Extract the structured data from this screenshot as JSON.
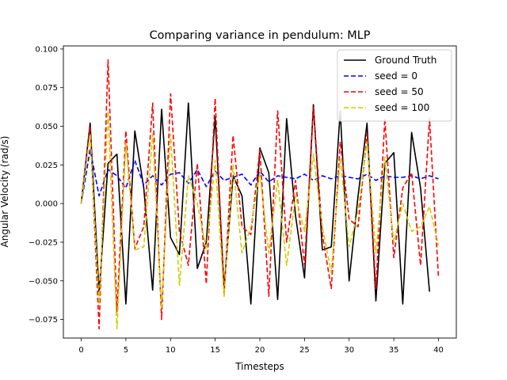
{
  "chart_data": {
    "type": "line",
    "title": "Comparing variance in pendulum: MLP",
    "xlabel": "Timesteps",
    "ylabel": "Angular Velocity (rad/s)",
    "xlim": [
      -2,
      42
    ],
    "ylim": [
      -0.087,
      0.102
    ],
    "xticks": [
      0,
      5,
      10,
      15,
      20,
      25,
      30,
      35,
      40
    ],
    "yticks": [
      -0.075,
      -0.05,
      -0.025,
      0.0,
      0.025,
      0.05,
      0.075,
      0.1
    ],
    "ytick_labels": [
      "−0.075",
      "−0.050",
      "−0.025",
      "0.000",
      "0.025",
      "0.050",
      "0.075",
      "0.100"
    ],
    "grid": false,
    "legend_position": "top-right",
    "series": [
      {
        "name": "Ground Truth",
        "color": "#000000",
        "dash": "solid",
        "x": [
          0,
          1,
          2,
          3,
          4,
          5,
          6,
          7,
          8,
          9,
          10,
          11,
          12,
          13,
          14,
          15,
          16,
          17,
          18,
          19,
          20,
          21,
          22,
          23,
          24,
          25,
          26,
          27,
          28,
          29,
          30,
          31,
          32,
          33,
          34,
          35,
          36,
          37,
          38,
          39
        ],
        "values": [
          0.0,
          0.052,
          -0.058,
          0.026,
          0.032,
          -0.065,
          0.047,
          0.01,
          -0.056,
          0.061,
          -0.022,
          -0.033,
          0.065,
          -0.042,
          -0.025,
          0.056,
          -0.055,
          0.018,
          0.005,
          -0.065,
          0.036,
          0.02,
          -0.062,
          0.055,
          -0.008,
          -0.048,
          0.064,
          -0.03,
          -0.028,
          0.06,
          -0.05,
          0.005,
          0.052,
          -0.063,
          0.026,
          0.033,
          -0.065,
          0.046,
          0.01,
          -0.057
        ]
      },
      {
        "name": "seed = 0",
        "color": "#0000ff",
        "dash": "dashed",
        "x": [
          0,
          1,
          2,
          3,
          4,
          5,
          6,
          7,
          8,
          9,
          10,
          11,
          12,
          13,
          14,
          15,
          16,
          17,
          18,
          19,
          20,
          21,
          22,
          23,
          24,
          25,
          26,
          27,
          28,
          29,
          30,
          31,
          32,
          33,
          34,
          35,
          36,
          37,
          38,
          39,
          40
        ],
        "values": [
          0.0,
          0.035,
          0.005,
          0.022,
          0.018,
          0.01,
          0.028,
          0.012,
          0.018,
          0.012,
          0.019,
          0.02,
          0.013,
          0.022,
          0.011,
          0.021,
          0.015,
          0.017,
          0.019,
          0.012,
          0.021,
          0.014,
          0.018,
          0.017,
          0.016,
          0.019,
          0.015,
          0.018,
          0.016,
          0.018,
          0.017,
          0.016,
          0.019,
          0.015,
          0.018,
          0.017,
          0.017,
          0.018,
          0.016,
          0.018,
          0.016
        ]
      },
      {
        "name": "seed = 50",
        "color": "#ff0000",
        "dash": "dashed",
        "x": [
          0,
          1,
          2,
          3,
          4,
          5,
          6,
          7,
          8,
          9,
          10,
          11,
          12,
          13,
          14,
          15,
          16,
          17,
          18,
          19,
          20,
          21,
          22,
          23,
          24,
          25,
          26,
          27,
          28,
          29,
          30,
          31,
          32,
          33,
          34,
          35,
          36,
          37,
          38,
          39,
          40
        ],
        "values": [
          0.0,
          0.05,
          -0.081,
          0.093,
          -0.07,
          0.047,
          -0.029,
          -0.015,
          0.065,
          -0.075,
          0.071,
          -0.018,
          -0.04,
          0.026,
          -0.052,
          0.068,
          -0.059,
          0.044,
          -0.015,
          -0.02,
          0.035,
          -0.06,
          0.06,
          -0.025,
          0.015,
          -0.04,
          0.062,
          -0.02,
          -0.055,
          0.04,
          -0.01,
          -0.015,
          0.045,
          -0.055,
          0.055,
          -0.035,
          0.01,
          0.02,
          -0.04,
          0.055,
          -0.048
        ]
      },
      {
        "name": "seed = 100",
        "color": "#cccc00",
        "dash": "dashed",
        "x": [
          0,
          1,
          2,
          3,
          4,
          5,
          6,
          7,
          8,
          9,
          10,
          11,
          12,
          13,
          14,
          15,
          16,
          17,
          18,
          19,
          20,
          21,
          22,
          23,
          24,
          25,
          26,
          27,
          28,
          29,
          30,
          31,
          32,
          33,
          34,
          35,
          36,
          37,
          38,
          39,
          40
        ],
        "values": [
          0.0,
          0.045,
          -0.065,
          0.06,
          -0.081,
          0.04,
          -0.03,
          -0.028,
          0.045,
          -0.068,
          0.045,
          -0.053,
          0.018,
          0.0,
          -0.03,
          0.028,
          -0.06,
          0.025,
          -0.032,
          -0.015,
          0.02,
          -0.032,
          0.015,
          -0.04,
          0.005,
          -0.018,
          0.032,
          -0.015,
          -0.045,
          0.03,
          -0.028,
          -0.005,
          0.04,
          -0.032,
          0.03,
          -0.025,
          0.0,
          -0.018,
          -0.015,
          -0.002,
          -0.027
        ]
      }
    ]
  }
}
